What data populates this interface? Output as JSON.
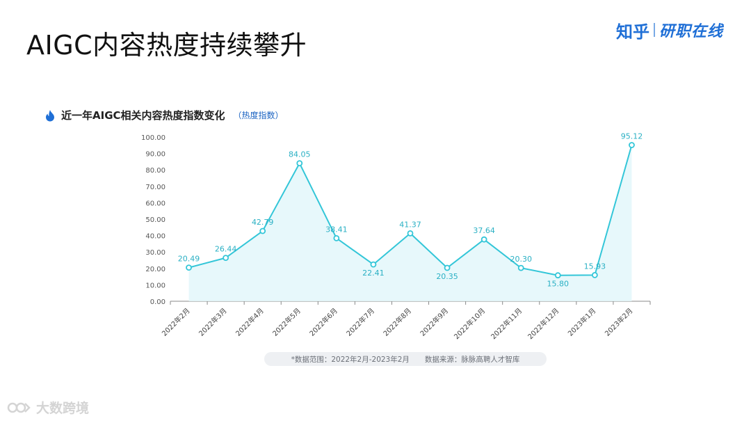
{
  "slide": {
    "title": "AIGC内容热度持续攀升"
  },
  "brand": {
    "zhihu": "知乎",
    "name": "研职在线"
  },
  "chart_header": {
    "title": "近一年AIGC相关内容热度指数变化",
    "unit": "（热度指数）"
  },
  "footnote": {
    "range": "*数据范围：2022年2月-2023年2月",
    "source": "数据来源：脉脉高聘人才智库"
  },
  "watermark": {
    "text": "大数跨境"
  },
  "colors": {
    "line": "#33c6d8",
    "fill": "#e3f7fa",
    "label": "#2ab0c4",
    "axis": "#8a8a8a",
    "brand": "#1f6fd6"
  },
  "chart_data": {
    "type": "area",
    "title": "近一年AIGC相关内容热度指数变化",
    "ylabel": "热度指数",
    "categories": [
      "2022年2月",
      "2022年3月",
      "2022年4月",
      "2022年5月",
      "2022年6月",
      "2022年7月",
      "2022年8月",
      "2022年9月",
      "2022年10月",
      "2022年11月",
      "2022年12月",
      "2023年1月",
      "2023年2月"
    ],
    "values": [
      20.49,
      26.44,
      42.79,
      84.05,
      38.41,
      22.41,
      41.37,
      20.35,
      37.64,
      20.3,
      15.8,
      15.93,
      95.12
    ],
    "value_labels": [
      "20.49",
      "26.44",
      "42.79",
      "84.05",
      "38.41",
      "22.41",
      "41.37",
      "20.35",
      "37.64",
      "20.30",
      "15.80",
      "15.93",
      "95.12"
    ],
    "ylim": [
      0,
      100
    ],
    "yticks": [
      "0.00",
      "10.00",
      "20.00",
      "30.00",
      "40.00",
      "50.00",
      "60.00",
      "70.00",
      "80.00",
      "90.00",
      "100.00"
    ],
    "grid": false,
    "legend": "none"
  }
}
